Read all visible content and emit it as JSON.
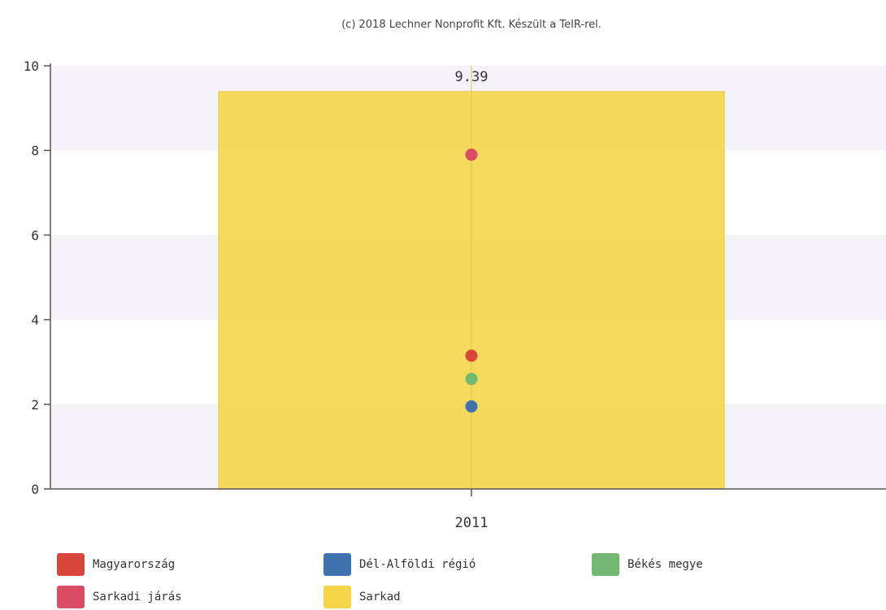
{
  "credit": "(c) 2018 Lechner Nonprofit Kft. Készült a TeIR-rel.",
  "chart_data": {
    "type": "bar",
    "categories": [
      "2011"
    ],
    "ylim": [
      0,
      10
    ],
    "yticks": [
      0,
      2,
      4,
      6,
      8,
      10
    ],
    "grid": "alternating horizontal bands",
    "legend_position": "bottom",
    "series": [
      {
        "name": "Sarkad",
        "kind": "bar",
        "values": [
          9.39
        ],
        "color": "#f5d547",
        "data_label": "9.39"
      },
      {
        "name": "Sarkadi járás",
        "kind": "point",
        "values": [
          7.9
        ],
        "color": "#d94c63"
      },
      {
        "name": "Magyarország",
        "kind": "point",
        "values": [
          3.15
        ],
        "color": "#d9463b"
      },
      {
        "name": "Békés megye",
        "kind": "point",
        "values": [
          2.6
        ],
        "color": "#72b872"
      },
      {
        "name": "Dél-Alföldi régió",
        "kind": "point",
        "values": [
          1.95
        ],
        "color": "#3f72af"
      }
    ],
    "legend": [
      {
        "name": "Magyarország",
        "color": "#d9463b"
      },
      {
        "name": "Dél-Alföldi régió",
        "color": "#3f72af"
      },
      {
        "name": "Békés megye",
        "color": "#72b872"
      },
      {
        "name": "Sarkadi járás",
        "color": "#d94c63"
      },
      {
        "name": "Sarkad",
        "color": "#f5d547"
      }
    ]
  }
}
